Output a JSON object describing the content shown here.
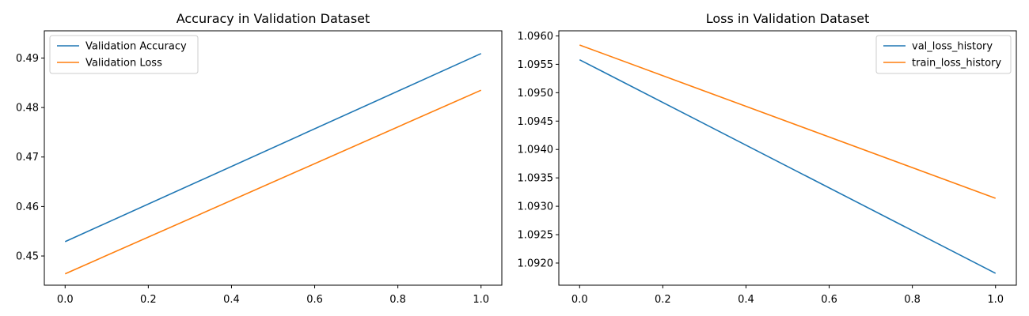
{
  "chart_data": [
    {
      "type": "line",
      "title": "Accuracy in Validation Dataset",
      "xlabel": "",
      "ylabel": "",
      "xlim": [
        -0.05,
        1.05
      ],
      "ylim": [
        0.4441,
        0.4955
      ],
      "xticks": [
        0.0,
        0.2,
        0.4,
        0.6,
        0.8,
        1.0
      ],
      "xtick_labels": [
        "0.0",
        "0.2",
        "0.4",
        "0.6",
        "0.8",
        "1.0"
      ],
      "yticks": [
        0.45,
        0.46,
        0.47,
        0.48,
        0.49
      ],
      "ytick_labels": [
        "0.45",
        "0.46",
        "0.47",
        "0.48",
        "0.49"
      ],
      "grid": false,
      "legend_position": "top-left",
      "series": [
        {
          "name": "Validation Accuracy",
          "color": "#1f77b4",
          "x": [
            0,
            1
          ],
          "y": [
            0.4529,
            0.4909
          ]
        },
        {
          "name": "Validation Loss",
          "color": "#ff7f0e",
          "x": [
            0,
            1
          ],
          "y": [
            0.4464,
            0.4835
          ]
        }
      ]
    },
    {
      "type": "line",
      "title": "Loss in Validation Dataset",
      "xlabel": "",
      "ylabel": "",
      "xlim": [
        -0.05,
        1.05
      ],
      "ylim": [
        1.09161,
        1.09609
      ],
      "xticks": [
        0.0,
        0.2,
        0.4,
        0.6,
        0.8,
        1.0
      ],
      "xtick_labels": [
        "0.0",
        "0.2",
        "0.4",
        "0.6",
        "0.8",
        "1.0"
      ],
      "yticks": [
        1.092,
        1.0925,
        1.093,
        1.0935,
        1.094,
        1.0945,
        1.095,
        1.0955,
        1.096
      ],
      "ytick_labels": [
        "1.0920",
        "1.0925",
        "1.0930",
        "1.0935",
        "1.0940",
        "1.0945",
        "1.0950",
        "1.0955",
        "1.0960"
      ],
      "grid": false,
      "legend_position": "top-right",
      "series": [
        {
          "name": "val_loss_history",
          "color": "#1f77b4",
          "x": [
            0,
            1
          ],
          "y": [
            1.09558,
            1.09182
          ]
        },
        {
          "name": "train_loss_history",
          "color": "#ff7f0e",
          "x": [
            0,
            1
          ],
          "y": [
            1.09584,
            1.09314
          ]
        }
      ]
    }
  ]
}
